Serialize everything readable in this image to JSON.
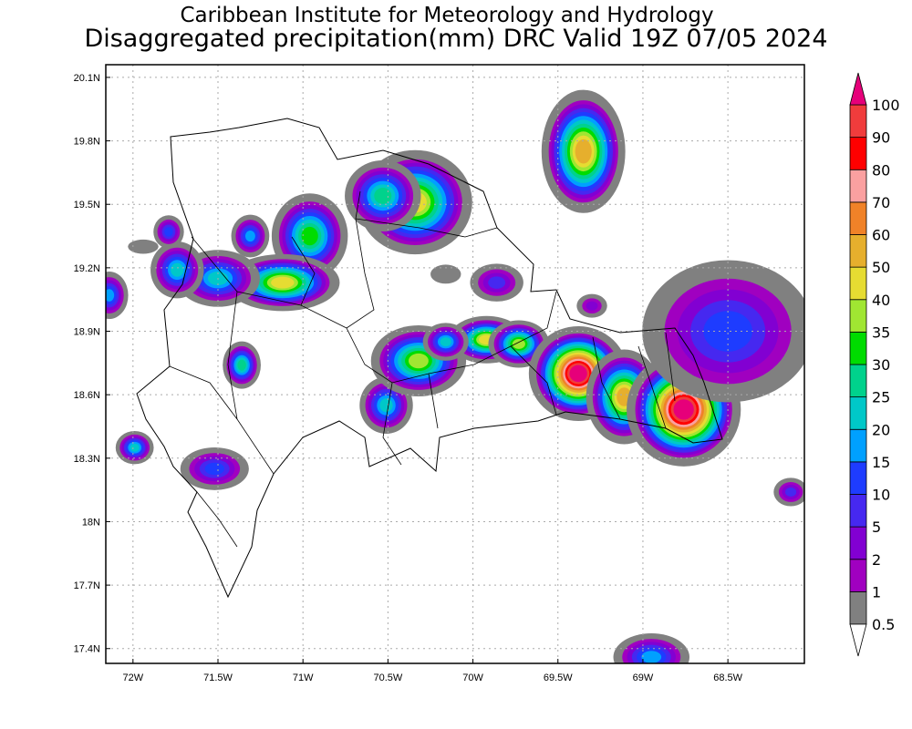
{
  "title": "Caribbean Institute for Meteorology and Hydrology",
  "subtitle": "Disaggregated precipitation(mm) DRC Valid 19Z 07/05 2024",
  "chart_data": {
    "type": "heatmap",
    "title": "Disaggregated precipitation(mm) DRC Valid 19Z 07/05 2024",
    "lon_range": [
      -72.16,
      -68.05
    ],
    "lat_range": [
      17.33,
      20.16
    ],
    "grid": true,
    "x_ticks": [
      {
        "value": -72,
        "label": "72W"
      },
      {
        "value": -71.5,
        "label": "71.5W"
      },
      {
        "value": -71,
        "label": "71W"
      },
      {
        "value": -70.5,
        "label": "70.5W"
      },
      {
        "value": -70,
        "label": "70W"
      },
      {
        "value": -69.5,
        "label": "69.5W"
      },
      {
        "value": -69,
        "label": "69W"
      },
      {
        "value": -68.5,
        "label": "68.5W"
      }
    ],
    "y_ticks": [
      {
        "value": 20.1,
        "label": "20.1N"
      },
      {
        "value": 19.8,
        "label": "19.8N"
      },
      {
        "value": 19.5,
        "label": "19.5N"
      },
      {
        "value": 19.2,
        "label": "19.2N"
      },
      {
        "value": 18.9,
        "label": "18.9N"
      },
      {
        "value": 18.6,
        "label": "18.6N"
      },
      {
        "value": 18.3,
        "label": "18.3N"
      },
      {
        "value": 18.0,
        "label": "18N"
      },
      {
        "value": 17.7,
        "label": "17.7N"
      },
      {
        "value": 17.4,
        "label": "17.4N"
      }
    ],
    "legend": {
      "placement": "right",
      "levels": [
        0.5,
        1,
        2,
        5,
        10,
        15,
        20,
        25,
        30,
        35,
        40,
        50,
        60,
        70,
        80,
        90,
        100
      ],
      "labels": [
        "0.5",
        "1",
        "2",
        "5",
        "10",
        "15",
        "20",
        "25",
        "30",
        "35",
        "40",
        "50",
        "60",
        "70",
        "80",
        "90",
        "100"
      ],
      "colors": [
        "#808080",
        "#a000c0",
        "#8200d2",
        "#4628f0",
        "#1e3cff",
        "#00a0ff",
        "#00c8c8",
        "#00d28c",
        "#00dc00",
        "#a0e632",
        "#e6dc32",
        "#e6af2d",
        "#f08228",
        "#faa0a0",
        "#ff0000",
        "#f03c3c"
      ],
      "over_color": "#e6007a",
      "under_color": "#ffffff"
    },
    "cells": [
      {
        "lon": -69.35,
        "lat": 19.75,
        "peak": 50,
        "rx": 0.22,
        "ry": 0.26
      },
      {
        "lon": -70.34,
        "lat": 19.51,
        "peak": 45,
        "rx": 0.3,
        "ry": 0.22
      },
      {
        "lon": -70.53,
        "lat": 19.54,
        "peak": 25,
        "rx": 0.2,
        "ry": 0.15
      },
      {
        "lon": -70.96,
        "lat": 19.35,
        "peak": 30,
        "rx": 0.2,
        "ry": 0.18
      },
      {
        "lon": -71.12,
        "lat": 19.13,
        "peak": 40,
        "rx": 0.3,
        "ry": 0.12
      },
      {
        "lon": -71.5,
        "lat": 19.15,
        "peak": 20,
        "rx": 0.22,
        "ry": 0.12
      },
      {
        "lon": -71.74,
        "lat": 19.19,
        "peak": 20,
        "rx": 0.14,
        "ry": 0.12
      },
      {
        "lon": -71.79,
        "lat": 19.37,
        "peak": 10,
        "rx": 0.08,
        "ry": 0.07
      },
      {
        "lon": -71.31,
        "lat": 19.35,
        "peak": 15,
        "rx": 0.1,
        "ry": 0.09
      },
      {
        "lon": -72.14,
        "lat": 19.07,
        "peak": 15,
        "rx": 0.1,
        "ry": 0.1
      },
      {
        "lon": -71.36,
        "lat": 18.74,
        "peak": 25,
        "rx": 0.1,
        "ry": 0.1
      },
      {
        "lon": -71.99,
        "lat": 18.35,
        "peak": 20,
        "rx": 0.1,
        "ry": 0.07
      },
      {
        "lon": -71.52,
        "lat": 18.25,
        "peak": 10,
        "rx": 0.18,
        "ry": 0.09
      },
      {
        "lon": -69.86,
        "lat": 19.13,
        "peak": 5,
        "rx": 0.14,
        "ry": 0.08
      },
      {
        "lon": -70.51,
        "lat": 18.55,
        "peak": 20,
        "rx": 0.14,
        "ry": 0.12
      },
      {
        "lon": -70.32,
        "lat": 18.76,
        "peak": 35,
        "rx": 0.25,
        "ry": 0.15
      },
      {
        "lon": -69.92,
        "lat": 18.86,
        "peak": 40,
        "rx": 0.2,
        "ry": 0.1
      },
      {
        "lon": -69.73,
        "lat": 18.84,
        "peak": 35,
        "rx": 0.16,
        "ry": 0.1
      },
      {
        "lon": -70.16,
        "lat": 18.85,
        "peak": 20,
        "rx": 0.12,
        "ry": 0.08
      },
      {
        "lon": -69.38,
        "lat": 18.7,
        "peak": 100,
        "rx": 0.26,
        "ry": 0.2
      },
      {
        "lon": -69.11,
        "lat": 18.59,
        "peak": 50,
        "rx": 0.2,
        "ry": 0.2
      },
      {
        "lon": -68.76,
        "lat": 18.53,
        "peak": 100,
        "rx": 0.3,
        "ry": 0.24
      },
      {
        "lon": -68.5,
        "lat": 18.9,
        "peak": 10,
        "rx": 0.45,
        "ry": 0.3
      },
      {
        "lon": -68.95,
        "lat": 17.36,
        "peak": 15,
        "rx": 0.2,
        "ry": 0.1
      },
      {
        "lon": -68.13,
        "lat": 18.14,
        "peak": 5,
        "rx": 0.09,
        "ry": 0.06
      },
      {
        "lon": -69.3,
        "lat": 19.02,
        "peak": 2,
        "rx": 0.08,
        "ry": 0.05
      },
      {
        "lon": -70.16,
        "lat": 19.17,
        "peak": 0.5,
        "rx": 0.08,
        "ry": 0.04
      },
      {
        "lon": -71.94,
        "lat": 19.3,
        "peak": 0.5,
        "rx": 0.08,
        "ry": 0.03
      }
    ]
  }
}
